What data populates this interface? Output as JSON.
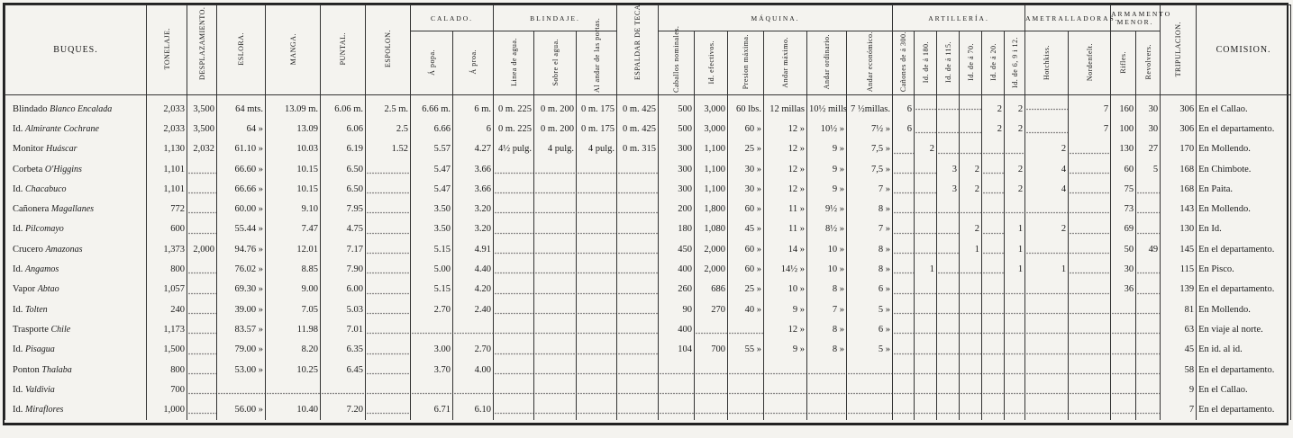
{
  "header": {
    "ships": "BUQUES.",
    "columns": [
      {
        "label": "TONELAJE."
      },
      {
        "label": "DESPLAZAMIENTO."
      },
      {
        "label": "ESLORA."
      },
      {
        "label": "MANGA."
      },
      {
        "label": "PUNTAL."
      },
      {
        "label": "ESPOLON."
      },
      {
        "label": "CALADO.",
        "sub": [
          "Á popa.",
          "Á proa."
        ]
      },
      {
        "label": "BLINDAJE.",
        "sub": [
          "Linea de agua.",
          "Sobre el agua.",
          "Al andar de las portas."
        ]
      },
      {
        "label": "ESPALDAR DE TECA."
      },
      {
        "label": "MÁQUINA.",
        "sub": [
          "Caballos nominales.",
          "Id. efectivos.",
          "Presion máxima.",
          "Andar máximo.",
          "Andar ordinario.",
          "Andar económico."
        ]
      },
      {
        "label": "ARTILLERÍA.",
        "sub": [
          "Cañones de á 300.",
          "Id. de á 180.",
          "Id. de á 115.",
          "Id. de á 70.",
          "Id. de á 20.",
          "Id. de 6, 9 i 12."
        ]
      },
      {
        "label": "AMETRALLADORAS.",
        "sub": [
          "Hotchkiss.",
          "Nordenfelt."
        ]
      },
      {
        "label": "ARMAMENTO MENOR.",
        "sub": [
          "Rifles.",
          "Revolvers."
        ]
      },
      {
        "label": "TRIPULACION."
      },
      {
        "label": "COMISION."
      }
    ]
  },
  "rows": [
    {
      "type": "Blindado",
      "name": "Blanco Encalada",
      "cells": [
        "2,033",
        "3,500",
        "64 mts.",
        "13.09 m.",
        "6.06 m.",
        "2.5 m.",
        "6.66 m.",
        "6 m.",
        "0 m. 225",
        "0 m. 200",
        "0 m. 175",
        "0 m. 425",
        "500",
        "3,000",
        "60 lbs.",
        "12 millas",
        "10½ mills.",
        "7 ½millas.",
        "6",
        null,
        null,
        null,
        "2",
        "2",
        null,
        "7",
        "160",
        "30",
        "306",
        "En el Callao."
      ]
    },
    {
      "type": "Id.",
      "name": "Almirante Cochrane",
      "cells": [
        "2,033",
        "3,500",
        "64 »",
        "13.09",
        "6.06",
        "2.5",
        "6.66",
        "6",
        "0 m. 225",
        "0 m. 200",
        "0 m. 175",
        "0 m. 425",
        "500",
        "3,000",
        "60 »",
        "12 »",
        "10½ »",
        "7½ »",
        "6",
        null,
        null,
        null,
        "2",
        "2",
        null,
        "7",
        "100",
        "30",
        "306",
        "En el departamento."
      ]
    },
    {
      "type": "Monitor",
      "name": "Huáscar",
      "cells": [
        "1,130",
        "2,032",
        "61.10 »",
        "10.03",
        "6.19",
        "1.52",
        "5.57",
        "4.27",
        "4½ pulg.",
        "4 pulg.",
        "4 pulg.",
        "0 m. 315",
        "300",
        "1,100",
        "25 »",
        "12 »",
        "9 »",
        "7,5 »",
        null,
        "2",
        null,
        null,
        null,
        null,
        "2",
        null,
        "130",
        "27",
        "170",
        "En Mollendo."
      ]
    },
    {
      "type": "Corbeta",
      "name": "O'Higgins",
      "cells": [
        "1,101",
        null,
        "66.60 »",
        "10.15",
        "6.50",
        null,
        "5.47",
        "3.66",
        null,
        null,
        null,
        null,
        "300",
        "1,100",
        "30 »",
        "12 »",
        "9 »",
        "7,5 »",
        null,
        null,
        "3",
        "2",
        null,
        "2",
        "4",
        null,
        "60",
        "5",
        "168",
        "En Chimbote."
      ]
    },
    {
      "type": "Id.",
      "name": "Chacabuco",
      "cells": [
        "1,101",
        null,
        "66.66 »",
        "10.15",
        "6.50",
        null,
        "5.47",
        "3.66",
        null,
        null,
        null,
        null,
        "300",
        "1,100",
        "30 »",
        "12 »",
        "9 »",
        "7 »",
        null,
        null,
        "3",
        "2",
        null,
        "2",
        "4",
        null,
        "75",
        null,
        "168",
        "En Paita."
      ]
    },
    {
      "type": "Cañonera",
      "name": "Magallanes",
      "cells": [
        "772",
        null,
        "60.00 »",
        "9.10",
        "7.95",
        null,
        "3.50",
        "3.20",
        null,
        null,
        null,
        null,
        "200",
        "1,800",
        "60 »",
        "11 »",
        "9½ »",
        "8 »",
        null,
        null,
        null,
        null,
        null,
        null,
        null,
        null,
        "73",
        null,
        "143",
        "En Mollendo."
      ]
    },
    {
      "type": "Id.",
      "name": "Pilcomayo",
      "cells": [
        "600",
        null,
        "55.44 »",
        "7.47",
        "4.75",
        null,
        "3.50",
        "3.20",
        null,
        null,
        null,
        null,
        "180",
        "1,080",
        "45 »",
        "11 »",
        "8½ »",
        "7 »",
        null,
        null,
        null,
        "2",
        null,
        "1",
        "2",
        null,
        "69",
        null,
        "130",
        "En Id."
      ]
    },
    {
      "type": "Crucero",
      "name": "Amazonas",
      "cells": [
        "1,373",
        "2,000",
        "94.76 »",
        "12.01",
        "7.17",
        null,
        "5.15",
        "4.91",
        null,
        null,
        null,
        null,
        "450",
        "2,000",
        "60 »",
        "14 »",
        "10 »",
        "8 »",
        null,
        null,
        null,
        "1",
        null,
        "1",
        null,
        null,
        "50",
        "49",
        "145",
        "En el departamento."
      ]
    },
    {
      "type": "Id.",
      "name": "Angamos",
      "cells": [
        "800",
        null,
        "76.02 »",
        "8.85",
        "7.90",
        null,
        "5.00",
        "4.40",
        null,
        null,
        null,
        null,
        "400",
        "2,000",
        "60 »",
        "14½ »",
        "10 »",
        "8 »",
        null,
        "1",
        null,
        null,
        null,
        "1",
        "1",
        null,
        "30",
        null,
        "115",
        "En Pisco."
      ]
    },
    {
      "type": "Vapor",
      "name": "Abtao",
      "cells": [
        "1,057",
        null,
        "69.30 »",
        "9.00",
        "6.00",
        null,
        "5.15",
        "4.20",
        null,
        null,
        null,
        null,
        "260",
        "686",
        "25 »",
        "10 »",
        "8 »",
        "6 »",
        null,
        null,
        null,
        null,
        null,
        null,
        null,
        null,
        "36",
        null,
        "139",
        "En el departamento."
      ]
    },
    {
      "type": "Id.",
      "name": "Tolten",
      "cells": [
        "240",
        null,
        "39.00 »",
        "7.05",
        "5.03",
        null,
        "2.70",
        "2.40",
        null,
        null,
        null,
        null,
        "90",
        "270",
        "40 »",
        "9 »",
        "7 »",
        "5 »",
        null,
        null,
        null,
        null,
        null,
        null,
        null,
        null,
        null,
        null,
        "81",
        "En Mollendo."
      ]
    },
    {
      "type": "Trasporte",
      "name": "Chile",
      "cells": [
        "1,173",
        null,
        "83.57 »",
        "11.98",
        "7.01",
        null,
        null,
        null,
        null,
        null,
        null,
        null,
        "400",
        null,
        null,
        "12 »",
        "8 »",
        "6 »",
        null,
        null,
        null,
        null,
        null,
        null,
        null,
        null,
        null,
        null,
        "63",
        "En viaje al norte."
      ]
    },
    {
      "type": "Id.",
      "name": "Pisagua",
      "cells": [
        "1,500",
        null,
        "79.00 »",
        "8.20",
        "6.35",
        null,
        "3.00",
        "2.70",
        null,
        null,
        null,
        null,
        "104",
        "700",
        "55 »",
        "9 »",
        "8 »",
        "5 »",
        null,
        null,
        null,
        null,
        null,
        null,
        null,
        null,
        null,
        null,
        "45",
        "En id. al id."
      ]
    },
    {
      "type": "Ponton",
      "name": "Thalaba",
      "cells": [
        "800",
        null,
        "53.00 »",
        "10.25",
        "6.45",
        null,
        "3.70",
        "4.00",
        null,
        null,
        null,
        null,
        null,
        null,
        null,
        null,
        null,
        null,
        null,
        null,
        null,
        null,
        null,
        null,
        null,
        null,
        null,
        null,
        "58",
        "En el departamento."
      ]
    },
    {
      "type": "Id.",
      "name": "Valdivia",
      "cells": [
        "700",
        null,
        null,
        null,
        null,
        null,
        null,
        null,
        null,
        null,
        null,
        null,
        null,
        null,
        null,
        null,
        null,
        null,
        null,
        null,
        null,
        null,
        null,
        null,
        null,
        null,
        null,
        null,
        "9",
        "En el Callao."
      ]
    },
    {
      "type": "Id.",
      "name": "Miraflores",
      "cells": [
        "1,000",
        null,
        "56.00 »",
        "10.40",
        "7.20",
        null,
        "6.71",
        "6.10",
        null,
        null,
        null,
        null,
        null,
        null,
        null,
        null,
        null,
        null,
        null,
        null,
        null,
        null,
        null,
        null,
        null,
        null,
        null,
        null,
        "7",
        "En el departamento."
      ]
    }
  ]
}
